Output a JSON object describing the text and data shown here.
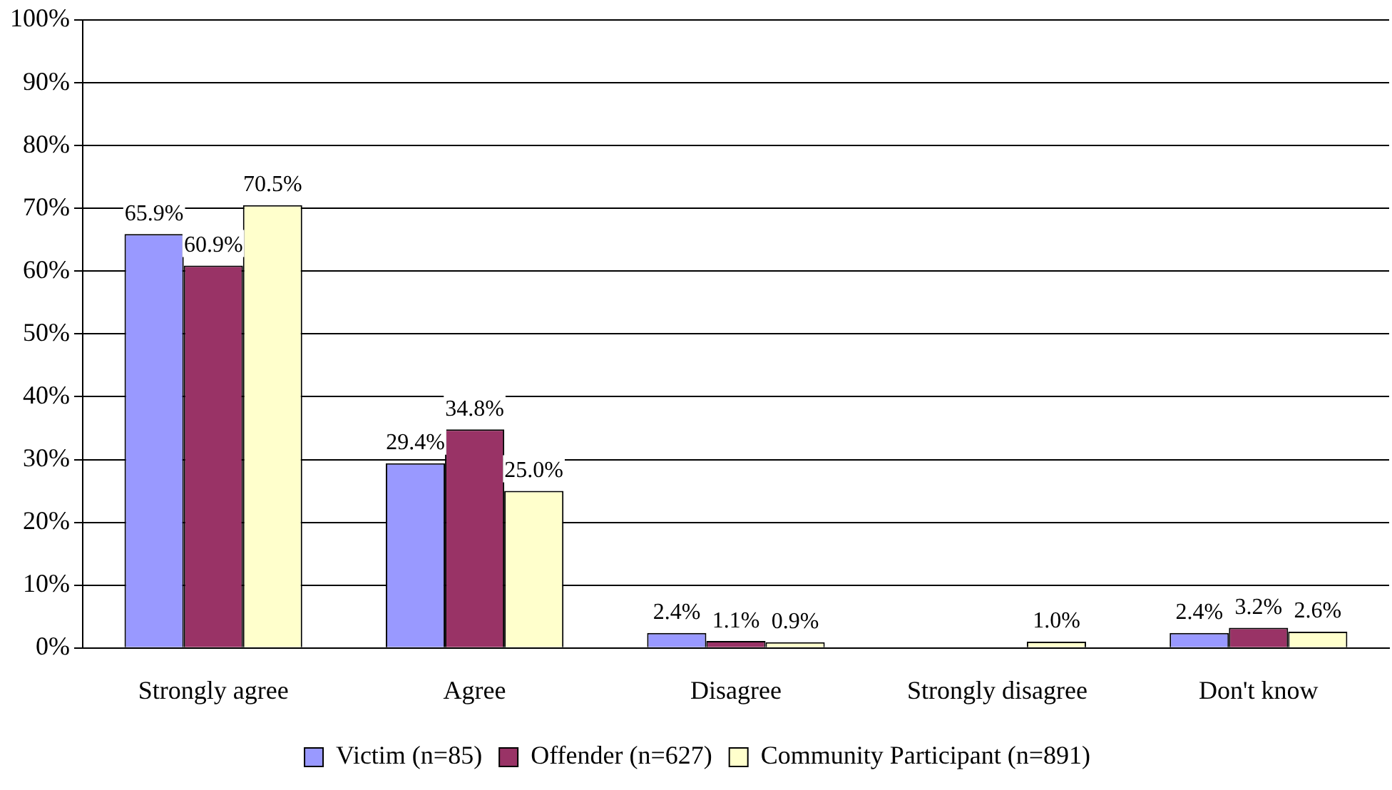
{
  "chart_data": {
    "type": "bar",
    "categories": [
      "Strongly agree",
      "Agree",
      "Disagree",
      "Strongly disagree",
      "Don't know"
    ],
    "series": [
      {
        "name": "Victim (n=85)",
        "color": "#9999ff",
        "values": [
          65.9,
          29.4,
          2.4,
          0,
          2.4
        ],
        "value_labels": [
          "65.9%",
          "29.4%",
          "2.4%",
          null,
          "2.4%"
        ]
      },
      {
        "name": "Offender (n=627)",
        "color": "#993366",
        "values": [
          60.9,
          34.8,
          1.1,
          0,
          3.2
        ],
        "value_labels": [
          "60.9%",
          "34.8%",
          "1.1%",
          null,
          "3.2%"
        ]
      },
      {
        "name": "Community Participant (n=891)",
        "color": "#ffffcc",
        "values": [
          70.5,
          25.0,
          0.9,
          1.0,
          2.6
        ],
        "value_labels": [
          "70.5%",
          "25.0%",
          "0.9%",
          "1.0%",
          "2.6%"
        ]
      }
    ],
    "ylim": [
      0,
      100
    ],
    "yticks": [
      {
        "value": 0,
        "label": "0%"
      },
      {
        "value": 10,
        "label": "10%"
      },
      {
        "value": 20,
        "label": "20%"
      },
      {
        "value": 30,
        "label": "30%"
      },
      {
        "value": 40,
        "label": "40%"
      },
      {
        "value": 50,
        "label": "50%"
      },
      {
        "value": 60,
        "label": "60%"
      },
      {
        "value": 70,
        "label": "70%"
      },
      {
        "value": 80,
        "label": "80%"
      },
      {
        "value": 90,
        "label": "90%"
      },
      {
        "value": 100,
        "label": "100%"
      }
    ],
    "grid": "y",
    "legend": "bottom"
  }
}
